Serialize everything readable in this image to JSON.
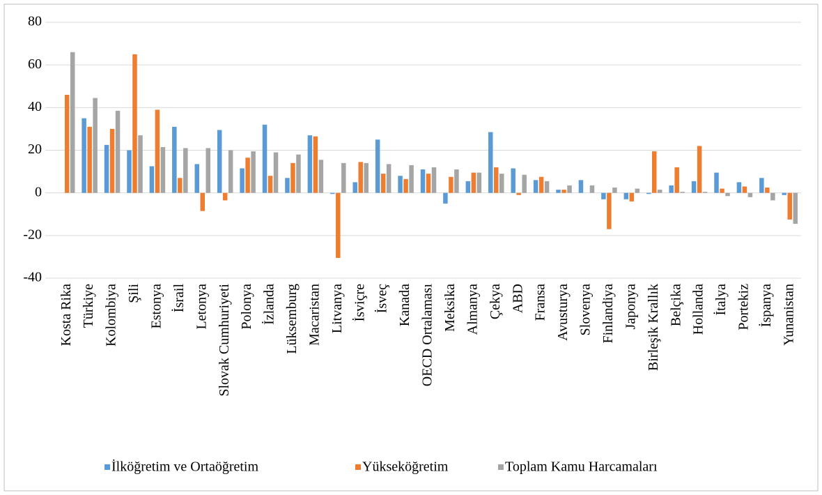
{
  "chart_data": {
    "type": "bar",
    "categories": [
      "Kosta Rika",
      "Türkiye",
      "Kolombiya",
      "Şili",
      "Estonya",
      "İsrail",
      "Letonya",
      "Slovak Cumhuriyeti",
      "Polonya",
      "İzlanda",
      "Lüksemburg",
      "Macaristan",
      "Litvanya",
      "İsviçre",
      "İsveç",
      "Kanada",
      "OECD Ortalaması",
      "Meksika",
      "Almanya",
      "Çekya",
      "ABD",
      "Fransa",
      "Avusturya",
      "Slovenya",
      "Finlandiya",
      "Japonya",
      "Birleşik Krallık",
      "Belçika",
      "Hollanda",
      "İtalya",
      "Portekiz",
      "İspanya",
      "Yunanistan"
    ],
    "series": [
      {
        "name": "İlköğretim ve Ortaöğretim",
        "color": "#5b9bd5",
        "values": [
          null,
          35,
          22.5,
          20,
          12.5,
          31,
          13.5,
          29.5,
          11.5,
          32,
          7,
          27,
          -0.5,
          5,
          25,
          8,
          11,
          -5,
          5.5,
          28.5,
          11.5,
          6,
          1.5,
          6,
          -3,
          -3,
          -0.5,
          3.5,
          5.5,
          9.5,
          5,
          7,
          -1
        ]
      },
      {
        "name": "Yükseköğretim",
        "color": "#ed7d31",
        "values": [
          46,
          31,
          30,
          65,
          39,
          7,
          -8.5,
          -3.5,
          16.5,
          8,
          14,
          26.5,
          -30.5,
          14.5,
          9,
          6.5,
          9,
          7.5,
          9.5,
          12,
          -1,
          7.5,
          1.5,
          null,
          -17,
          -4,
          19.5,
          12,
          22,
          2,
          3,
          2.5,
          -12.5
        ]
      },
      {
        "name": "Toplam Kamu Harcamaları",
        "color": "#a5a5a5",
        "values": [
          66,
          44.5,
          38.5,
          27,
          21.5,
          21,
          21,
          20,
          19.5,
          19,
          18,
          15.5,
          14,
          14,
          13.5,
          13,
          12,
          11,
          9.5,
          9,
          8.5,
          5.5,
          3.5,
          3.5,
          2.5,
          2,
          1.5,
          0.5,
          0.5,
          -1.5,
          -2,
          -3.5,
          -14.5
        ]
      }
    ],
    "ylim": [
      -40,
      80
    ],
    "yticks": [
      -40,
      -20,
      0,
      20,
      40,
      60,
      80
    ],
    "grid": true,
    "legend": "bottom"
  }
}
